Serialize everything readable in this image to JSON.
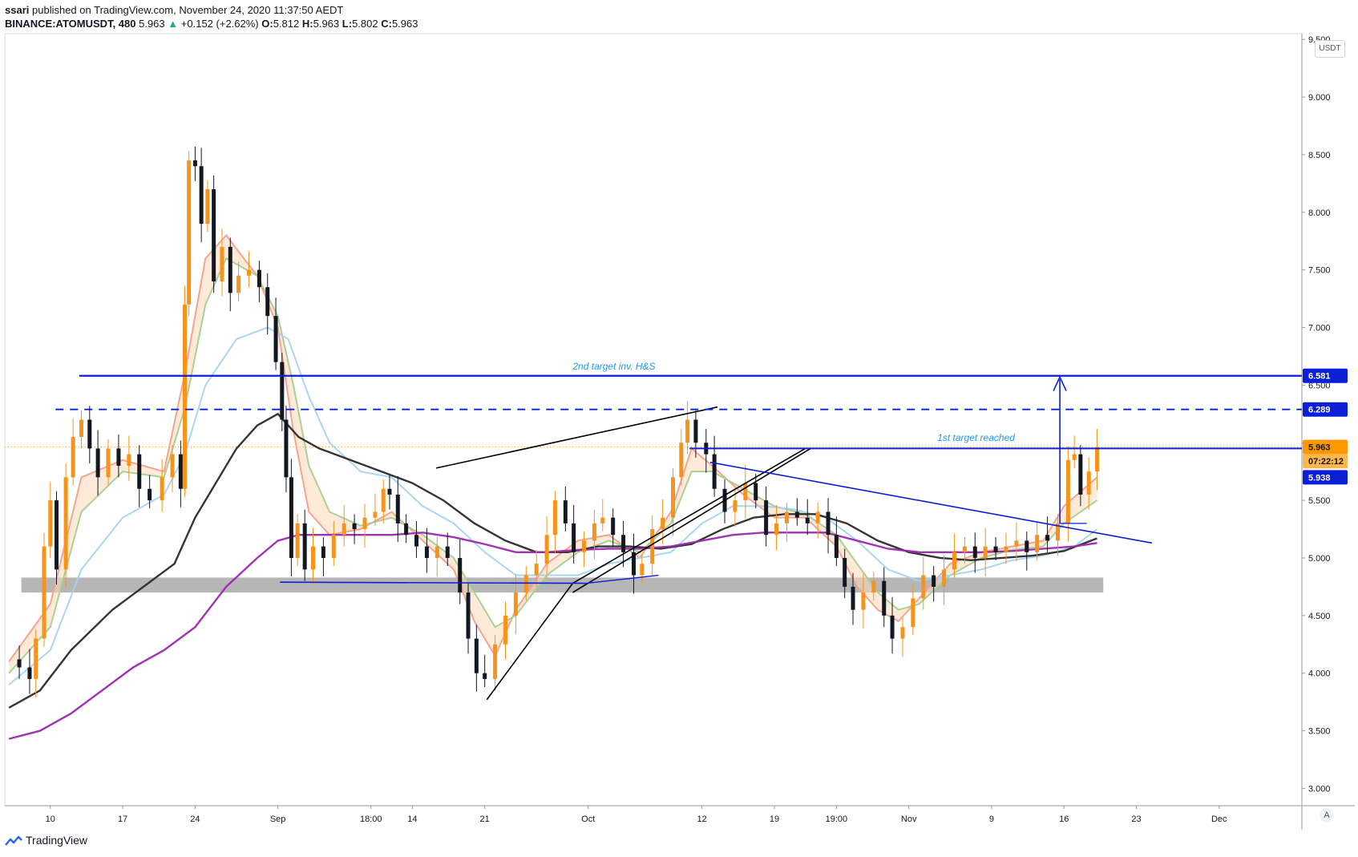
{
  "header": {
    "author": "ssari",
    "published_text": "published on TradingView.com, November 24, 2020 11:37:50 AEDT",
    "symbol": "BINANCE:ATOMUSDT, 480",
    "last": "5.963",
    "change": "+0.152 (+2.62%)",
    "o_label": "O:",
    "o": "5.812",
    "h_label": "H:",
    "h": "5.963",
    "l_label": "L:",
    "l": "5.802",
    "c_label": "C:",
    "c": "5.963"
  },
  "footer": {
    "brand": "TradingView"
  },
  "currency_button": "USDT",
  "auto_button": "A",
  "colors": {
    "blue_line": "#0a1fd6",
    "up_candle": "#f7931a",
    "down_candle": "#131722",
    "ema_red": "#f4a08a",
    "ema_green": "#a5cf8e",
    "ema_lightblue": "#a6d3f2",
    "ma_black": "#2a2a2a",
    "ma_purple": "#9c27b0",
    "price_tag_orange": "#ff9800"
  },
  "chart_data": {
    "type": "candlestick",
    "ylim": [
      2.85,
      9.55
    ],
    "y_ticks": [
      "3.000",
      "3.500",
      "4.000",
      "4.500",
      "5.000",
      "5.500",
      "6.000",
      "6.500",
      "7.000",
      "7.500",
      "8.000",
      "8.500",
      "9.000",
      "9.500"
    ],
    "x_ticks": [
      {
        "label": "10",
        "t": 10
      },
      {
        "label": "17",
        "t": 17
      },
      {
        "label": "24",
        "t": 24
      },
      {
        "label": "Sep",
        "t": 32
      },
      {
        "label": "18:00",
        "t": 41
      },
      {
        "label": "14",
        "t": 45
      },
      {
        "label": "21",
        "t": 52
      },
      {
        "label": "Oct",
        "t": 62
      },
      {
        "label": "12",
        "t": 73
      },
      {
        "label": "19",
        "t": 80
      },
      {
        "label": "19:00",
        "t": 86
      },
      {
        "label": "Nov",
        "t": 93
      },
      {
        "label": "9",
        "t": 101
      },
      {
        "label": "16",
        "t": 108
      },
      {
        "label": "23",
        "t": 115
      },
      {
        "label": "Dec",
        "t": 123
      }
    ],
    "xlim": [
      5.6,
      131
    ],
    "series_close": [
      [
        6.0,
        4.12
      ],
      [
        7.0,
        4.05
      ],
      [
        8.0,
        3.95
      ],
      [
        8.6,
        4.3
      ],
      [
        9.4,
        5.1
      ],
      [
        10.0,
        5.5
      ],
      [
        10.6,
        4.9
      ],
      [
        11.5,
        5.7
      ],
      [
        12.2,
        6.05
      ],
      [
        13.0,
        6.2
      ],
      [
        13.8,
        5.95
      ],
      [
        14.6,
        5.7
      ],
      [
        15.6,
        5.95
      ],
      [
        16.6,
        5.8
      ],
      [
        17.6,
        5.9
      ],
      [
        18.6,
        5.6
      ],
      [
        19.6,
        5.5
      ],
      [
        20.8,
        5.7
      ],
      [
        21.8,
        5.9
      ],
      [
        22.6,
        5.6
      ],
      [
        23.0,
        7.2
      ],
      [
        23.4,
        8.45
      ],
      [
        24.0,
        8.4
      ],
      [
        24.6,
        7.9
      ],
      [
        25.2,
        8.2
      ],
      [
        25.8,
        7.4
      ],
      [
        26.6,
        7.7
      ],
      [
        27.4,
        7.3
      ],
      [
        28.2,
        7.45
      ],
      [
        29.2,
        7.5
      ],
      [
        30.2,
        7.35
      ],
      [
        31.0,
        7.1
      ],
      [
        31.8,
        6.7
      ],
      [
        32.4,
        6.2
      ],
      [
        32.8,
        5.7
      ],
      [
        33.3,
        5.0
      ],
      [
        33.9,
        5.3
      ],
      [
        34.6,
        4.9
      ],
      [
        35.4,
        5.1
      ],
      [
        36.4,
        5.0
      ],
      [
        37.4,
        5.2
      ],
      [
        38.4,
        5.3
      ],
      [
        39.4,
        5.25
      ],
      [
        40.4,
        5.35
      ],
      [
        41.4,
        5.4
      ],
      [
        42.2,
        5.6
      ],
      [
        42.8,
        5.55
      ],
      [
        43.6,
        5.3
      ],
      [
        44.4,
        5.2
      ],
      [
        45.4,
        5.1
      ],
      [
        46.4,
        5.0
      ],
      [
        47.4,
        5.1
      ],
      [
        48.4,
        5.0
      ],
      [
        49.6,
        4.7
      ],
      [
        50.4,
        4.3
      ],
      [
        51.2,
        4.0
      ],
      [
        52.0,
        3.95
      ],
      [
        53.0,
        4.25
      ],
      [
        54.0,
        4.5
      ],
      [
        55.0,
        4.7
      ],
      [
        56.0,
        4.85
      ],
      [
        57.0,
        4.95
      ],
      [
        58.0,
        5.2
      ],
      [
        58.8,
        5.5
      ],
      [
        59.8,
        5.3
      ],
      [
        60.6,
        5.05
      ],
      [
        61.6,
        5.15
      ],
      [
        62.6,
        5.3
      ],
      [
        63.4,
        5.35
      ],
      [
        64.4,
        5.2
      ],
      [
        65.4,
        5.05
      ],
      [
        66.4,
        4.85
      ],
      [
        67.2,
        4.95
      ],
      [
        68.2,
        5.25
      ],
      [
        69.2,
        5.35
      ],
      [
        70.2,
        5.7
      ],
      [
        71.0,
        6.0
      ],
      [
        71.6,
        6.2
      ],
      [
        72.4,
        6.0
      ],
      [
        73.4,
        5.9
      ],
      [
        74.2,
        5.6
      ],
      [
        75.2,
        5.4
      ],
      [
        76.2,
        5.5
      ],
      [
        77.2,
        5.65
      ],
      [
        78.2,
        5.5
      ],
      [
        79.2,
        5.2
      ],
      [
        80.2,
        5.3
      ],
      [
        81.2,
        5.4
      ],
      [
        82.2,
        5.35
      ],
      [
        83.2,
        5.3
      ],
      [
        84.2,
        5.4
      ],
      [
        85.2,
        5.2
      ],
      [
        86.0,
        5.0
      ],
      [
        86.8,
        4.75
      ],
      [
        87.6,
        4.55
      ],
      [
        88.6,
        4.7
      ],
      [
        89.6,
        4.8
      ],
      [
        90.6,
        4.5
      ],
      [
        91.4,
        4.3
      ],
      [
        92.4,
        4.4
      ],
      [
        93.4,
        4.65
      ],
      [
        94.4,
        4.85
      ],
      [
        95.4,
        4.75
      ],
      [
        96.4,
        4.9
      ],
      [
        97.4,
        5.05
      ],
      [
        98.4,
        5.1
      ],
      [
        99.4,
        5.0
      ],
      [
        100.4,
        5.1
      ],
      [
        101.4,
        5.05
      ],
      [
        102.4,
        5.1
      ],
      [
        103.4,
        5.15
      ],
      [
        104.4,
        5.05
      ],
      [
        105.4,
        5.2
      ],
      [
        106.4,
        5.15
      ],
      [
        107.4,
        5.3
      ],
      [
        108.4,
        5.85
      ],
      [
        109.0,
        5.9
      ],
      [
        109.6,
        5.55
      ],
      [
        110.4,
        5.75
      ],
      [
        111.2,
        5.96
      ]
    ],
    "overlay_series": [
      {
        "name": "",
        "color_key": "ema_red",
        "values": [
          [
            6,
            4.1
          ],
          [
            10,
            4.6
          ],
          [
            13,
            5.7
          ],
          [
            17,
            5.85
          ],
          [
            21,
            5.75
          ],
          [
            23,
            6.6
          ],
          [
            25,
            7.6
          ],
          [
            27,
            7.8
          ],
          [
            30,
            7.45
          ],
          [
            32,
            7.0
          ],
          [
            33.5,
            6.1
          ],
          [
            35,
            5.4
          ],
          [
            37,
            5.2
          ],
          [
            40,
            5.25
          ],
          [
            43,
            5.4
          ],
          [
            46,
            5.15
          ],
          [
            49,
            4.9
          ],
          [
            51,
            4.45
          ],
          [
            53,
            4.15
          ],
          [
            55,
            4.55
          ],
          [
            58,
            4.95
          ],
          [
            61,
            5.15
          ],
          [
            64,
            5.2
          ],
          [
            67,
            5.0
          ],
          [
            70,
            5.4
          ],
          [
            72,
            5.95
          ],
          [
            74,
            5.8
          ],
          [
            77,
            5.55
          ],
          [
            80,
            5.35
          ],
          [
            83,
            5.35
          ],
          [
            86,
            5.1
          ],
          [
            88,
            4.75
          ],
          [
            90,
            4.55
          ],
          [
            92,
            4.45
          ],
          [
            94,
            4.65
          ],
          [
            97,
            4.95
          ],
          [
            100,
            5.05
          ],
          [
            103,
            5.1
          ],
          [
            106,
            5.15
          ],
          [
            108,
            5.45
          ],
          [
            111.2,
            5.7
          ]
        ]
      },
      {
        "name": "",
        "color_key": "ema_green",
        "values": [
          [
            6,
            4.0
          ],
          [
            10,
            4.4
          ],
          [
            13,
            5.4
          ],
          [
            17,
            5.75
          ],
          [
            21,
            5.7
          ],
          [
            23,
            6.3
          ],
          [
            25,
            7.2
          ],
          [
            27,
            7.6
          ],
          [
            30,
            7.45
          ],
          [
            32,
            7.1
          ],
          [
            33.5,
            6.5
          ],
          [
            35,
            5.8
          ],
          [
            37,
            5.4
          ],
          [
            40,
            5.28
          ],
          [
            43,
            5.35
          ],
          [
            46,
            5.2
          ],
          [
            49,
            5.0
          ],
          [
            51,
            4.7
          ],
          [
            53,
            4.4
          ],
          [
            55,
            4.5
          ],
          [
            58,
            4.85
          ],
          [
            61,
            5.05
          ],
          [
            64,
            5.15
          ],
          [
            67,
            5.05
          ],
          [
            70,
            5.3
          ],
          [
            72,
            5.75
          ],
          [
            74,
            5.75
          ],
          [
            77,
            5.6
          ],
          [
            80,
            5.45
          ],
          [
            83,
            5.38
          ],
          [
            86,
            5.2
          ],
          [
            88,
            4.95
          ],
          [
            90,
            4.7
          ],
          [
            92,
            4.55
          ],
          [
            94,
            4.6
          ],
          [
            97,
            4.85
          ],
          [
            100,
            5.0
          ],
          [
            103,
            5.07
          ],
          [
            106,
            5.1
          ],
          [
            108,
            5.3
          ],
          [
            111.2,
            5.5
          ]
        ]
      },
      {
        "name": "",
        "color_key": "ema_lightblue",
        "values": [
          [
            6,
            3.9
          ],
          [
            10,
            4.2
          ],
          [
            13,
            4.9
          ],
          [
            17,
            5.35
          ],
          [
            21,
            5.55
          ],
          [
            23,
            5.9
          ],
          [
            25,
            6.5
          ],
          [
            28,
            6.9
          ],
          [
            31,
            7.0
          ],
          [
            33,
            6.9
          ],
          [
            35,
            6.4
          ],
          [
            37,
            6.0
          ],
          [
            40,
            5.75
          ],
          [
            43,
            5.7
          ],
          [
            46,
            5.45
          ],
          [
            49,
            5.3
          ],
          [
            52,
            5.05
          ],
          [
            55,
            4.85
          ],
          [
            58,
            4.85
          ],
          [
            61,
            4.85
          ],
          [
            64,
            4.95
          ],
          [
            67,
            5.0
          ],
          [
            70,
            5.05
          ],
          [
            73,
            5.3
          ],
          [
            76,
            5.45
          ],
          [
            79,
            5.45
          ],
          [
            82,
            5.42
          ],
          [
            85,
            5.35
          ],
          [
            88,
            5.15
          ],
          [
            91,
            4.9
          ],
          [
            94,
            4.8
          ],
          [
            97,
            4.85
          ],
          [
            100,
            4.9
          ],
          [
            103,
            4.98
          ],
          [
            106,
            5.02
          ],
          [
            109,
            5.1
          ],
          [
            111.2,
            5.25
          ]
        ]
      },
      {
        "name": "",
        "color_key": "ma_black",
        "values": [
          [
            6,
            3.7
          ],
          [
            9,
            3.85
          ],
          [
            12,
            4.2
          ],
          [
            16,
            4.55
          ],
          [
            19,
            4.75
          ],
          [
            22,
            4.95
          ],
          [
            24,
            5.35
          ],
          [
            26,
            5.65
          ],
          [
            28,
            5.95
          ],
          [
            30,
            6.15
          ],
          [
            32,
            6.25
          ],
          [
            34,
            6.05
          ],
          [
            36,
            5.95
          ],
          [
            39,
            5.85
          ],
          [
            42,
            5.75
          ],
          [
            45,
            5.65
          ],
          [
            48,
            5.5
          ],
          [
            51,
            5.3
          ],
          [
            54,
            5.15
          ],
          [
            57,
            5.05
          ],
          [
            60,
            5.05
          ],
          [
            63,
            5.1
          ],
          [
            66,
            5.1
          ],
          [
            69,
            5.08
          ],
          [
            72,
            5.12
          ],
          [
            75,
            5.25
          ],
          [
            78,
            5.35
          ],
          [
            81,
            5.38
          ],
          [
            84,
            5.38
          ],
          [
            87,
            5.3
          ],
          [
            90,
            5.15
          ],
          [
            93,
            5.05
          ],
          [
            96,
            5.0
          ],
          [
            99,
            4.98
          ],
          [
            102,
            5.0
          ],
          [
            105,
            5.02
          ],
          [
            108,
            5.06
          ],
          [
            111.2,
            5.17
          ]
        ]
      },
      {
        "name": "",
        "color_key": "ma_purple",
        "values": [
          [
            6,
            3.43
          ],
          [
            9,
            3.5
          ],
          [
            12,
            3.65
          ],
          [
            15,
            3.85
          ],
          [
            18,
            4.05
          ],
          [
            21,
            4.2
          ],
          [
            24,
            4.4
          ],
          [
            27,
            4.75
          ],
          [
            30,
            5.0
          ],
          [
            32,
            5.15
          ],
          [
            34,
            5.2
          ],
          [
            37,
            5.2
          ],
          [
            40,
            5.2
          ],
          [
            43,
            5.2
          ],
          [
            46,
            5.22
          ],
          [
            49,
            5.18
          ],
          [
            52,
            5.12
          ],
          [
            55,
            5.05
          ],
          [
            58,
            5.05
          ],
          [
            61,
            5.07
          ],
          [
            64,
            5.08
          ],
          [
            67,
            5.08
          ],
          [
            70,
            5.1
          ],
          [
            73,
            5.15
          ],
          [
            76,
            5.2
          ],
          [
            79,
            5.22
          ],
          [
            82,
            5.22
          ],
          [
            85,
            5.22
          ],
          [
            88,
            5.15
          ],
          [
            91,
            5.08
          ],
          [
            94,
            5.05
          ],
          [
            97,
            5.05
          ],
          [
            100,
            5.05
          ],
          [
            103,
            5.06
          ],
          [
            106,
            5.08
          ],
          [
            109,
            5.1
          ],
          [
            111.2,
            5.13
          ]
        ]
      }
    ],
    "annotations": [
      {
        "text": "2nd target inv. H&S",
        "t": 64.5,
        "y": 6.6
      },
      {
        "text": "1st target reached",
        "t": 99.5,
        "y": 5.98
      }
    ],
    "price_tags": [
      {
        "text": "6.581",
        "y": 6.581,
        "style": "blue"
      },
      {
        "text": "6.289",
        "y": 6.289,
        "style": "blue"
      },
      {
        "text": "5.963",
        "y": 5.963,
        "style": "orange"
      },
      {
        "text": "07:22:12",
        "y": 5.84,
        "style": "orange-light"
      },
      {
        "text": "5.938",
        "y": 5.7,
        "style": "blue"
      }
    ]
  }
}
